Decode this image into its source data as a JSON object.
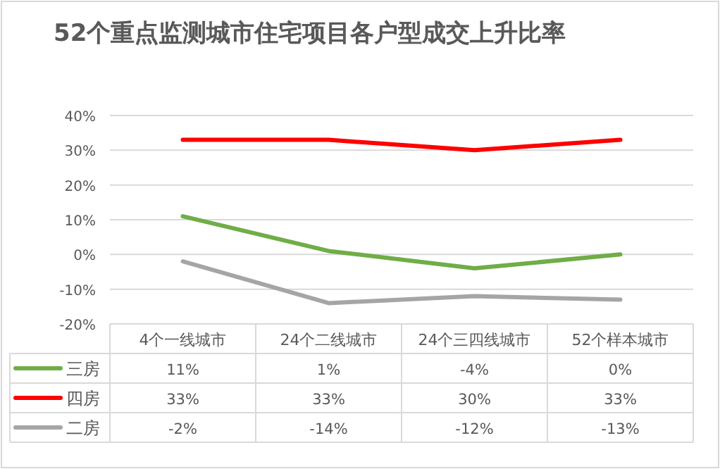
{
  "chart_data": {
    "type": "line",
    "title": "52个重点监测城市住宅项目各户型成交上升比率",
    "categories": [
      "4个一线城市",
      "24个二线城市",
      "24个三四线城市",
      "52个样本城市"
    ],
    "series": [
      {
        "name": "三房",
        "color": "#70ad47",
        "values": [
          11,
          1,
          -4,
          0
        ],
        "value_labels": [
          "11%",
          "1%",
          "-4%",
          "0%"
        ]
      },
      {
        "name": "四房",
        "color": "#ff0000",
        "values": [
          33,
          33,
          30,
          33
        ],
        "value_labels": [
          "33%",
          "33%",
          "30%",
          "33%"
        ]
      },
      {
        "name": "二房",
        "color": "#a5a5a5",
        "values": [
          -2,
          -14,
          -12,
          -13
        ],
        "value_labels": [
          "-2%",
          "-14%",
          "-12%",
          "-13%"
        ]
      }
    ],
    "ylim": [
      -20,
      40
    ],
    "yticks": [
      {
        "value": -20,
        "label": "-20%"
      },
      {
        "value": -10,
        "label": "-10%"
      },
      {
        "value": 0,
        "label": "0%"
      },
      {
        "value": 10,
        "label": "10%"
      },
      {
        "value": 20,
        "label": "20%"
      },
      {
        "value": 30,
        "label": "30%"
      },
      {
        "value": 40,
        "label": "40%"
      }
    ],
    "grid": "y",
    "legend": "bottom left",
    "marker": "none",
    "line_style": "solid"
  }
}
